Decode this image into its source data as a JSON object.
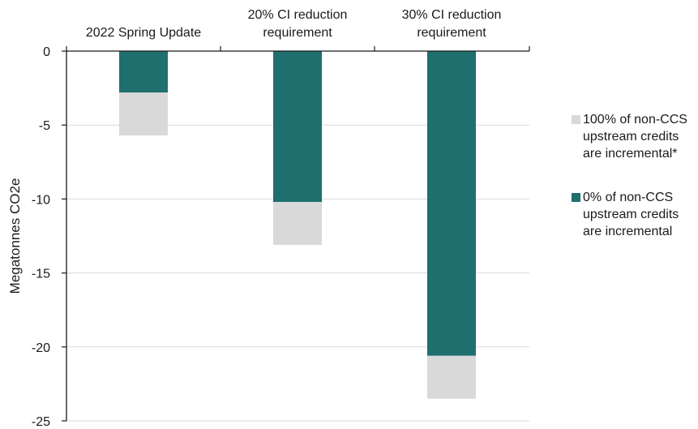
{
  "chart_data": {
    "type": "bar",
    "stacked": true,
    "categories": [
      [
        "2022 Spring Update"
      ],
      [
        "20% CI reduction",
        "requirement"
      ],
      [
        "30% CI reduction",
        "requirement"
      ]
    ],
    "series": [
      {
        "name": [
          "0% of non-CCS",
          "upstream credits",
          "are incremental"
        ],
        "values": [
          -2.8,
          -10.2,
          -20.6
        ],
        "color": "#1f6f6f"
      },
      {
        "name": [
          "100% of non-CCS",
          "upstream credits",
          "are incremental*"
        ],
        "values": [
          -2.9,
          -2.9,
          -2.9
        ],
        "color": "#d9d9d9"
      }
    ],
    "legend_order": [
      1,
      0
    ],
    "ylabel": "Megatonnes CO2e",
    "ylim": [
      -25,
      0
    ],
    "yticks": [
      0,
      -5,
      -10,
      -15,
      -20,
      -25
    ],
    "category_axis_position": "top",
    "grid": true,
    "legend_position": "right"
  }
}
